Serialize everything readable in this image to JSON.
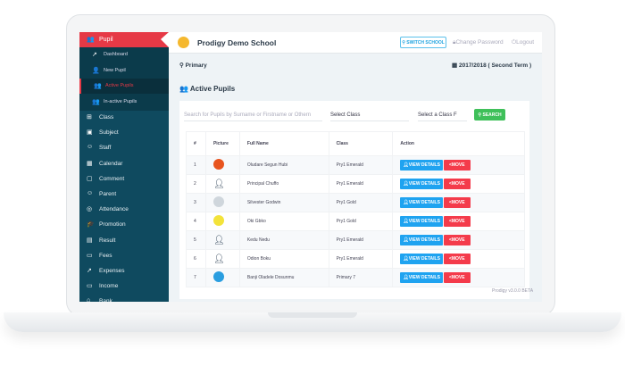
{
  "sidebar": {
    "section": "Pupil",
    "sub": [
      {
        "label": "Dashboard",
        "icon": "chart-line-icon"
      },
      {
        "label": "New Pupil",
        "icon": "user-plus-icon"
      },
      {
        "label": "Active Pupils",
        "icon": "users-icon"
      },
      {
        "label": "In-active Pupils",
        "icon": "user-group-icon"
      }
    ],
    "items": [
      {
        "label": "Class",
        "icon": "sitemap-icon"
      },
      {
        "label": "Subject",
        "icon": "book-icon"
      },
      {
        "label": "Staff",
        "icon": "staff-icon"
      },
      {
        "label": "Calendar",
        "icon": "calendar-icon"
      },
      {
        "label": "Comment",
        "icon": "comment-icon"
      },
      {
        "label": "Parent",
        "icon": "parent-icon"
      },
      {
        "label": "Attendance",
        "icon": "check-circle-icon"
      },
      {
        "label": "Promotion",
        "icon": "graduation-cap-icon"
      },
      {
        "label": "Result",
        "icon": "clipboard-icon"
      },
      {
        "label": "Fees",
        "icon": "money-icon"
      },
      {
        "label": "Expenses",
        "icon": "chart-line-icon"
      },
      {
        "label": "Income",
        "icon": "wallet-icon"
      },
      {
        "label": "Bank",
        "icon": "bank-icon"
      }
    ]
  },
  "header": {
    "school": "Prodigy Demo School",
    "switch": "SWITCH SCHOOL",
    "change_password": "Change Password",
    "logout": "Logout"
  },
  "context": {
    "level": "Primary",
    "session": "2017/2018 ( Second Term )"
  },
  "page": {
    "title": "Active Pupils"
  },
  "search": {
    "placeholder": "Search for Pupils by Surname or Firstname or Othern",
    "class": "Select Class",
    "arm": "Select a Class F",
    "button": "SEARCH"
  },
  "table": {
    "headers": [
      "#",
      "Picture",
      "Full Name",
      "Class",
      "Action"
    ],
    "view": "VIEW DETAILS",
    "move": "MOVE",
    "rows": [
      {
        "n": "1",
        "name": "Oludare Segun Hubi",
        "class": "Pry1 Emerald",
        "avatar": "#e8541e"
      },
      {
        "n": "2",
        "name": "Principal Chuffo",
        "class": "Pry1 Emerald",
        "avatar": "none"
      },
      {
        "n": "3",
        "name": "Silvester Godwin",
        "class": "Pry1 Gold",
        "avatar": "#cfd6dc"
      },
      {
        "n": "4",
        "name": "Oki Gbko",
        "class": "Pry1 Gold",
        "avatar": "#f3e33a"
      },
      {
        "n": "5",
        "name": "Kedu Nedu",
        "class": "Pry1 Emerald",
        "avatar": "none"
      },
      {
        "n": "6",
        "name": "Odion Boku",
        "class": "Pry1 Emerald",
        "avatar": "none"
      },
      {
        "n": "7",
        "name": "Banji Oladele Dosunmu",
        "class": "Primary 7",
        "avatar": "#2a9ee0"
      }
    ]
  },
  "footer": "Prodigy v3.0.0 BETA"
}
